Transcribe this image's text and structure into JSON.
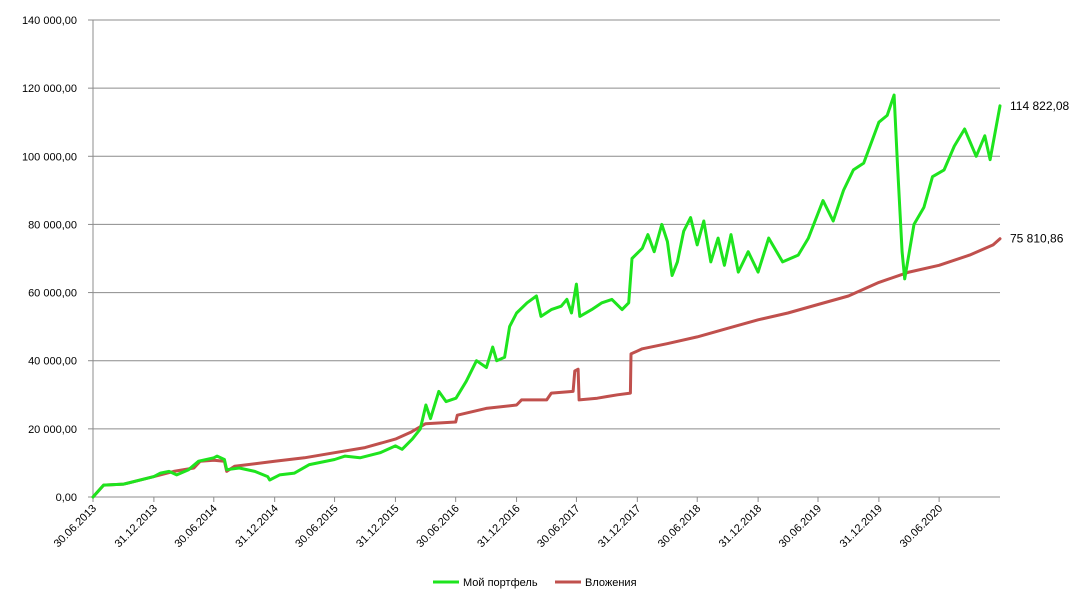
{
  "chart_data": {
    "type": "line",
    "title": "",
    "xlabel": "",
    "ylabel": "",
    "ylim": [
      0,
      140000
    ],
    "y_ticks": [
      0,
      20000,
      40000,
      60000,
      80000,
      100000,
      120000,
      140000
    ],
    "y_tick_labels": [
      "0,00",
      "20 000,00",
      "40 000,00",
      "60 000,00",
      "80 000,00",
      "100 000,00",
      "120 000,00",
      "140 000,00"
    ],
    "x_range": [
      "2013-06-30",
      "2020-12-31"
    ],
    "x_ticks": [
      "2013-06-30",
      "2013-12-31",
      "2014-06-30",
      "2014-12-31",
      "2015-06-30",
      "2015-12-31",
      "2016-06-30",
      "2016-12-31",
      "2017-06-30",
      "2017-12-31",
      "2018-06-30",
      "2018-12-31",
      "2019-06-30",
      "2019-12-31",
      "2020-06-30"
    ],
    "x_tick_labels": [
      "30.06.2013",
      "31.12.2013",
      "30.06.2014",
      "31.12.2014",
      "30.06.2015",
      "31.12.2015",
      "30.06.2016",
      "31.12.2016",
      "30.06.2017",
      "31.12.2017",
      "30.06.2018",
      "31.12.2018",
      "30.06.2019",
      "31.12.2019",
      "30.06.2020"
    ],
    "grid": "horizontal",
    "legend_position": "bottom",
    "series": [
      {
        "name": "Мой портфель",
        "color": "#1ee41e",
        "end_label": "114 822,08",
        "points": [
          [
            "2013-06-30",
            0
          ],
          [
            "2013-08-01",
            3500
          ],
          [
            "2013-10-01",
            3800
          ],
          [
            "2013-12-31",
            6000
          ],
          [
            "2014-01-20",
            7000
          ],
          [
            "2014-02-15",
            7500
          ],
          [
            "2014-03-10",
            6500
          ],
          [
            "2014-04-15",
            8000
          ],
          [
            "2014-05-15",
            10500
          ],
          [
            "2014-06-30",
            11500
          ],
          [
            "2014-07-10",
            12000
          ],
          [
            "2014-08-01",
            11000
          ],
          [
            "2014-08-08",
            8000
          ],
          [
            "2014-09-15",
            8500
          ],
          [
            "2014-11-01",
            7500
          ],
          [
            "2014-12-10",
            6000
          ],
          [
            "2014-12-16",
            5000
          ],
          [
            "2015-01-15",
            6500
          ],
          [
            "2015-03-01",
            7000
          ],
          [
            "2015-04-15",
            9500
          ],
          [
            "2015-06-30",
            11000
          ],
          [
            "2015-08-01",
            12000
          ],
          [
            "2015-09-15",
            11500
          ],
          [
            "2015-11-15",
            13000
          ],
          [
            "2015-12-31",
            15000
          ],
          [
            "2016-01-20",
            14000
          ],
          [
            "2016-02-20",
            17000
          ],
          [
            "2016-03-15",
            20000
          ],
          [
            "2016-04-01",
            27000
          ],
          [
            "2016-04-15",
            23000
          ],
          [
            "2016-05-10",
            31000
          ],
          [
            "2016-06-01",
            28000
          ],
          [
            "2016-07-01",
            29000
          ],
          [
            "2016-08-01",
            34000
          ],
          [
            "2016-09-01",
            40000
          ],
          [
            "2016-10-01",
            38000
          ],
          [
            "2016-10-20",
            44000
          ],
          [
            "2016-11-01",
            40000
          ],
          [
            "2016-11-25",
            41000
          ],
          [
            "2016-12-10",
            50000
          ],
          [
            "2016-12-31",
            54000
          ],
          [
            "2017-02-01",
            57000
          ],
          [
            "2017-03-01",
            59000
          ],
          [
            "2017-03-15",
            53000
          ],
          [
            "2017-04-15",
            55000
          ],
          [
            "2017-05-15",
            56000
          ],
          [
            "2017-06-01",
            58000
          ],
          [
            "2017-06-15",
            54000
          ],
          [
            "2017-06-30",
            62500
          ],
          [
            "2017-07-10",
            53000
          ],
          [
            "2017-08-15",
            55000
          ],
          [
            "2017-09-15",
            57000
          ],
          [
            "2017-10-15",
            58000
          ],
          [
            "2017-11-15",
            55000
          ],
          [
            "2017-12-05",
            57000
          ],
          [
            "2017-12-15",
            70000
          ],
          [
            "2018-01-15",
            73000
          ],
          [
            "2018-02-01",
            77000
          ],
          [
            "2018-02-20",
            72000
          ],
          [
            "2018-03-15",
            80000
          ],
          [
            "2018-04-01",
            75000
          ],
          [
            "2018-04-15",
            65000
          ],
          [
            "2018-05-01",
            69000
          ],
          [
            "2018-05-20",
            78000
          ],
          [
            "2018-06-10",
            82000
          ],
          [
            "2018-06-30",
            74000
          ],
          [
            "2018-07-20",
            81000
          ],
          [
            "2018-08-10",
            69000
          ],
          [
            "2018-09-01",
            76000
          ],
          [
            "2018-09-20",
            68000
          ],
          [
            "2018-10-10",
            77000
          ],
          [
            "2018-11-01",
            66000
          ],
          [
            "2018-12-01",
            72000
          ],
          [
            "2018-12-31",
            66000
          ],
          [
            "2019-02-01",
            76000
          ],
          [
            "2019-03-15",
            69000
          ],
          [
            "2019-05-01",
            71000
          ],
          [
            "2019-06-01",
            76000
          ],
          [
            "2019-07-15",
            87000
          ],
          [
            "2019-08-15",
            81000
          ],
          [
            "2019-09-15",
            90000
          ],
          [
            "2019-10-15",
            96000
          ],
          [
            "2019-11-15",
            98000
          ],
          [
            "2019-12-31",
            110000
          ],
          [
            "2020-01-25",
            112000
          ],
          [
            "2020-02-15",
            118000
          ],
          [
            "2020-02-25",
            98000
          ],
          [
            "2020-03-10",
            72000
          ],
          [
            "2020-03-18",
            64000
          ],
          [
            "2020-04-15",
            80000
          ],
          [
            "2020-05-15",
            85000
          ],
          [
            "2020-06-10",
            94000
          ],
          [
            "2020-07-15",
            96000
          ],
          [
            "2020-08-15",
            103000
          ],
          [
            "2020-09-15",
            108000
          ],
          [
            "2020-10-20",
            100000
          ],
          [
            "2020-11-15",
            106000
          ],
          [
            "2020-12-01",
            99000
          ],
          [
            "2020-12-31",
            114822.08
          ]
        ]
      },
      {
        "name": "Вложения",
        "color": "#c0504d",
        "end_label": "75 810,86",
        "points": [
          [
            "2013-06-30",
            0
          ],
          [
            "2013-08-01",
            3500
          ],
          [
            "2013-10-01",
            3800
          ],
          [
            "2013-12-31",
            6000
          ],
          [
            "2014-03-01",
            7500
          ],
          [
            "2014-05-01",
            8500
          ],
          [
            "2014-05-20",
            10500
          ],
          [
            "2014-06-30",
            10800
          ],
          [
            "2014-08-01",
            10500
          ],
          [
            "2014-08-08",
            7500
          ],
          [
            "2014-09-01",
            9000
          ],
          [
            "2014-12-31",
            10500
          ],
          [
            "2015-03-31",
            11500
          ],
          [
            "2015-06-30",
            13000
          ],
          [
            "2015-09-30",
            14500
          ],
          [
            "2015-12-31",
            17000
          ],
          [
            "2016-02-15",
            19000
          ],
          [
            "2016-03-31",
            21500
          ],
          [
            "2016-06-30",
            22000
          ],
          [
            "2016-07-05",
            24000
          ],
          [
            "2016-09-30",
            26000
          ],
          [
            "2016-12-31",
            27000
          ],
          [
            "2017-01-15",
            28500
          ],
          [
            "2017-04-01",
            28500
          ],
          [
            "2017-04-15",
            30500
          ],
          [
            "2017-06-20",
            31000
          ],
          [
            "2017-06-25",
            37000
          ],
          [
            "2017-07-05",
            37500
          ],
          [
            "2017-07-08",
            28500
          ],
          [
            "2017-09-01",
            29000
          ],
          [
            "2017-10-01",
            29500
          ],
          [
            "2017-11-01",
            30000
          ],
          [
            "2017-12-10",
            30500
          ],
          [
            "2017-12-12",
            42000
          ],
          [
            "2018-01-15",
            43500
          ],
          [
            "2018-03-31",
            45000
          ],
          [
            "2018-06-30",
            47000
          ],
          [
            "2018-09-30",
            49500
          ],
          [
            "2018-12-31",
            52000
          ],
          [
            "2019-03-31",
            54000
          ],
          [
            "2019-06-30",
            56500
          ],
          [
            "2019-09-30",
            59000
          ],
          [
            "2019-12-31",
            63000
          ],
          [
            "2020-03-31",
            66000
          ],
          [
            "2020-06-30",
            68000
          ],
          [
            "2020-09-30",
            71000
          ],
          [
            "2020-12-10",
            74000
          ],
          [
            "2020-12-31",
            75810.86
          ]
        ]
      }
    ]
  }
}
